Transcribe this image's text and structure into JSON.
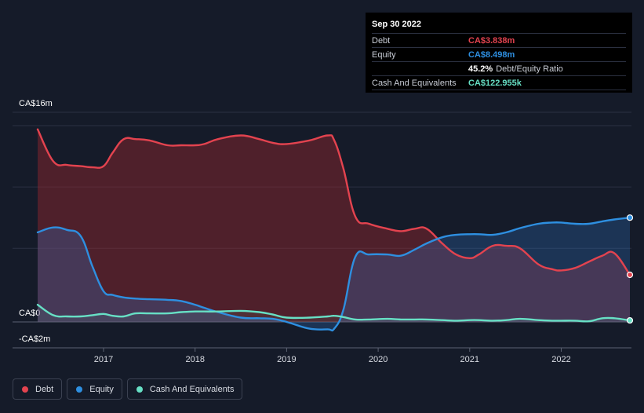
{
  "chart_data": {
    "type": "area",
    "ylim": [
      -2,
      16
    ],
    "y_labels": [
      "CA$16m",
      "CA$0",
      "-CA$2m"
    ],
    "x_ticks": [
      "2017",
      "2018",
      "2019",
      "2020",
      "2021",
      "2022"
    ],
    "x_tick_values": [
      2017,
      2018,
      2019,
      2020,
      2021,
      2022
    ],
    "xlim": [
      2016.0,
      2022.75
    ],
    "series": [
      {
        "name": "Debt",
        "color": "#e3434f",
        "x": [
          2016.28,
          2016.45,
          2016.6,
          2016.75,
          2016.88,
          2017.0,
          2017.1,
          2017.22,
          2017.35,
          2017.5,
          2017.7,
          2017.85,
          2018.0,
          2018.1,
          2018.25,
          2018.5,
          2018.7,
          2018.85,
          2019.0,
          2019.25,
          2019.45,
          2019.52,
          2019.62,
          2019.75,
          2019.9,
          2020.1,
          2020.25,
          2020.4,
          2020.53,
          2020.7,
          2020.85,
          2021.0,
          2021.1,
          2021.25,
          2021.4,
          2021.55,
          2021.75,
          2021.9,
          2022.0,
          2022.15,
          2022.3,
          2022.45,
          2022.58,
          2022.75
        ],
        "values": [
          15.7,
          13.1,
          12.8,
          12.7,
          12.6,
          12.7,
          13.8,
          14.9,
          14.9,
          14.8,
          14.4,
          14.4,
          14.4,
          14.5,
          14.9,
          15.2,
          14.9,
          14.6,
          14.5,
          14.8,
          15.2,
          14.8,
          12.5,
          8.6,
          8.0,
          7.6,
          7.4,
          7.6,
          7.6,
          6.4,
          5.5,
          5.2,
          5.5,
          6.2,
          6.2,
          6.0,
          4.7,
          4.3,
          4.2,
          4.4,
          4.9,
          5.4,
          5.6,
          3.84
        ]
      },
      {
        "name": "Equity",
        "color": "#2e8fe0",
        "x": [
          2016.28,
          2016.45,
          2016.6,
          2016.75,
          2016.88,
          2017.0,
          2017.1,
          2017.22,
          2017.35,
          2017.5,
          2017.7,
          2017.85,
          2018.0,
          2018.1,
          2018.25,
          2018.5,
          2018.7,
          2018.85,
          2019.0,
          2019.25,
          2019.45,
          2019.52,
          2019.62,
          2019.75,
          2019.9,
          2020.1,
          2020.25,
          2020.4,
          2020.53,
          2020.7,
          2020.85,
          2021.0,
          2021.1,
          2021.25,
          2021.4,
          2021.55,
          2021.75,
          2021.9,
          2022.0,
          2022.15,
          2022.3,
          2022.45,
          2022.58,
          2022.75
        ],
        "values": [
          7.3,
          7.7,
          7.5,
          7.0,
          4.5,
          2.5,
          2.2,
          2.0,
          1.9,
          1.85,
          1.8,
          1.7,
          1.4,
          1.15,
          0.8,
          0.35,
          0.3,
          0.25,
          0.0,
          -0.55,
          -0.6,
          -0.55,
          1.0,
          5.3,
          5.5,
          5.5,
          5.4,
          5.9,
          6.4,
          6.9,
          7.1,
          7.15,
          7.15,
          7.1,
          7.3,
          7.65,
          8.0,
          8.1,
          8.1,
          8.0,
          8.0,
          8.2,
          8.35,
          8.5
        ]
      },
      {
        "name": "Cash And Equivalents",
        "color": "#67e0c5",
        "x": [
          2016.28,
          2016.45,
          2016.6,
          2016.75,
          2016.88,
          2017.0,
          2017.1,
          2017.22,
          2017.35,
          2017.5,
          2017.7,
          2017.85,
          2018.0,
          2018.1,
          2018.25,
          2018.5,
          2018.7,
          2018.85,
          2019.0,
          2019.25,
          2019.45,
          2019.52,
          2019.62,
          2019.75,
          2019.9,
          2020.1,
          2020.25,
          2020.4,
          2020.53,
          2020.7,
          2020.85,
          2021.0,
          2021.1,
          2021.25,
          2021.4,
          2021.55,
          2021.75,
          2021.9,
          2022.0,
          2022.15,
          2022.3,
          2022.45,
          2022.58,
          2022.75
        ],
        "values": [
          1.4,
          0.55,
          0.45,
          0.45,
          0.55,
          0.65,
          0.5,
          0.45,
          0.7,
          0.7,
          0.7,
          0.8,
          0.85,
          0.85,
          0.85,
          0.9,
          0.8,
          0.6,
          0.35,
          0.35,
          0.45,
          0.5,
          0.4,
          0.2,
          0.2,
          0.25,
          0.2,
          0.2,
          0.2,
          0.15,
          0.1,
          0.15,
          0.15,
          0.1,
          0.15,
          0.25,
          0.15,
          0.1,
          0.1,
          0.1,
          0.05,
          0.3,
          0.3,
          0.123
        ]
      }
    ]
  },
  "tooltip": {
    "date": "Sep 30 2022",
    "rows": [
      {
        "label": "Debt",
        "value": "CA$3.838m",
        "color": "#e3434f"
      },
      {
        "label": "Equity",
        "value": "CA$8.498m",
        "color": "#2e8fe0"
      },
      {
        "label": "",
        "value": "45.2%",
        "suffix": "Debt/Equity Ratio",
        "color": "#ffffff"
      },
      {
        "label": "Cash And Equivalents",
        "value": "CA$122.955k",
        "color": "#67e0c5"
      }
    ]
  },
  "legend": [
    {
      "label": "Debt",
      "color": "#e3434f"
    },
    {
      "label": "Equity",
      "color": "#2e8fe0"
    },
    {
      "label": "Cash And Equivalents",
      "color": "#67e0c5"
    }
  ]
}
